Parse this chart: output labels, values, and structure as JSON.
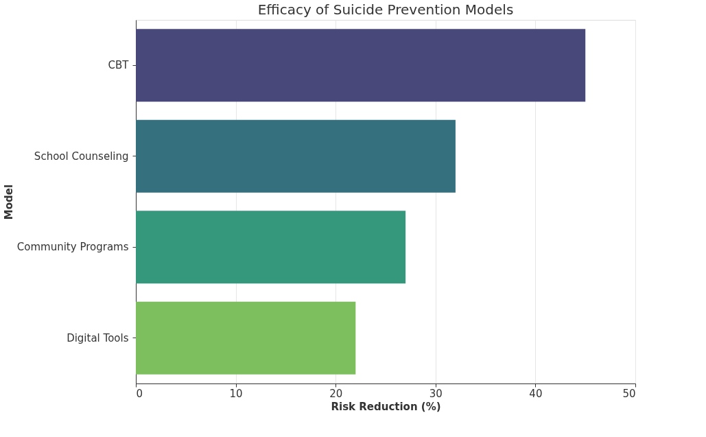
{
  "chart_data": {
    "type": "bar",
    "orientation": "horizontal",
    "title": "Efficacy of Suicide Prevention Models",
    "xlabel": "Risk Reduction (%)",
    "ylabel": "Model",
    "categories": [
      "CBT",
      "School Counseling",
      "Community Programs",
      "Digital Tools"
    ],
    "values": [
      45,
      32,
      27,
      22
    ],
    "colors": [
      "#48487a",
      "#35707f",
      "#35977b",
      "#7dbf5e"
    ],
    "xlim": [
      0,
      50
    ],
    "xticks": [
      0,
      10,
      20,
      30,
      40,
      50
    ],
    "grid": "x"
  }
}
